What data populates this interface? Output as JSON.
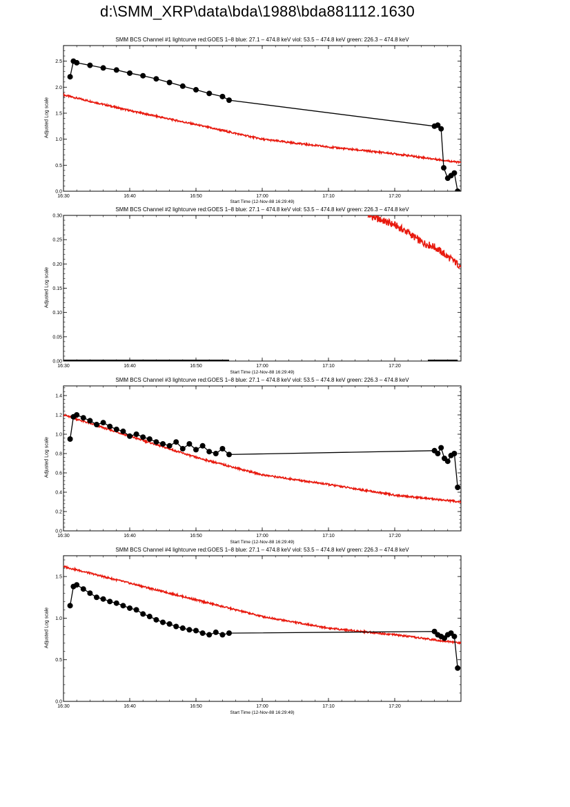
{
  "page": {
    "title": "d:\\SMM_XRP\\data\\bda\\1988\\bda881112.1630"
  },
  "colors": {
    "goes": "#e8190e",
    "bcs": "#000000"
  },
  "chart_data": [
    {
      "type": "scatter",
      "title": "SMM BCS Channel #1 lightcurve  red:GOES 1–8  blue: 27.1 – 474.8 keV  viol: 53.5 – 474.8 keV  green: 226.3 – 474.8 keV",
      "xlabel": "Start Time (12-Nov-88 16:29:49)",
      "ylabel": "Adjusted Log scale",
      "xlim": [
        "16:30",
        "17:30"
      ],
      "xticks": [
        "16:30",
        "16:40",
        "16:50",
        "17:00",
        "17:10",
        "17:20"
      ],
      "ylim": [
        0.0,
        2.8
      ],
      "yticks": [
        "0.0",
        "0.5",
        "1.0",
        "1.5",
        "2.0",
        "2.5"
      ],
      "series": [
        {
          "color": "red",
          "style": "line",
          "x": [
            "16:30",
            "16:40",
            "16:50",
            "17:00",
            "17:10",
            "17:20",
            "17:30"
          ],
          "y": [
            1.85,
            1.55,
            1.28,
            1.0,
            0.85,
            0.72,
            0.55
          ]
        },
        {
          "color": "black",
          "style": "line+points",
          "x": [
            "16:31",
            "16:31.5",
            "16:32",
            "16:34",
            "16:36",
            "16:38",
            "16:40",
            "16:42",
            "16:44",
            "16:46",
            "16:48",
            "16:50",
            "16:52",
            "16:54",
            "16:55",
            "17:26",
            "17:26.5",
            "17:27",
            "17:27.4",
            "17:28",
            "17:28.5",
            "17:29",
            "17:29.5"
          ],
          "y": [
            2.2,
            2.5,
            2.47,
            2.42,
            2.37,
            2.33,
            2.27,
            2.22,
            2.16,
            2.09,
            2.02,
            1.95,
            1.88,
            1.82,
            1.75,
            1.25,
            1.27,
            1.2,
            0.45,
            0.25,
            0.3,
            0.35,
            0.0
          ]
        }
      ]
    },
    {
      "type": "line",
      "title": "SMM BCS Channel #2 lightcurve  red:GOES 1–8  blue: 27.1 – 474.8 keV  viol: 53.5 – 474.8 keV  green: 226.3 – 474.8 keV",
      "xlabel": "Start Time (12-Nov-88 16:29:49)",
      "ylabel": "Adjusted Log scale",
      "xlim": [
        "16:30",
        "17:30"
      ],
      "xticks": [
        "16:30",
        "16:40",
        "16:50",
        "17:00",
        "17:10",
        "17:20"
      ],
      "ylim": [
        0.0,
        0.3
      ],
      "yticks": [
        "0.00",
        "0.05",
        "0.10",
        "0.15",
        "0.20",
        "0.25",
        "0.30"
      ],
      "series": [
        {
          "color": "red",
          "style": "line",
          "x": [
            "17:16",
            "17:18",
            "17:20",
            "17:22",
            "17:24",
            "17:26",
            "17:28",
            "17:30"
          ],
          "y": [
            0.3,
            0.29,
            0.28,
            0.265,
            0.245,
            0.235,
            0.215,
            0.195
          ]
        },
        {
          "color": "black",
          "style": "line",
          "x": [
            "16:30",
            "16:55"
          ],
          "y": [
            0.0,
            0.0
          ]
        },
        {
          "color": "black",
          "style": "line",
          "x": [
            "17:25",
            "17:29.5"
          ],
          "y": [
            0.0,
            0.0
          ]
        }
      ]
    },
    {
      "type": "scatter",
      "title": "SMM BCS Channel #3 lightcurve  red:GOES 1–8  blue: 27.1 – 474.8 keV  viol: 53.5 – 474.8 keV  green: 226.3 – 474.8 keV",
      "xlabel": "Start Time (12-Nov-88 16:29:49)",
      "ylabel": "Adjusted Log scale",
      "xlim": [
        "16:30",
        "17:30"
      ],
      "xticks": [
        "16:30",
        "16:40",
        "16:50",
        "17:00",
        "17:10",
        "17:20"
      ],
      "ylim": [
        0.0,
        1.5
      ],
      "yticks": [
        "0.0",
        "0.2",
        "0.4",
        "0.6",
        "0.8",
        "1.0",
        "1.2",
        "1.4"
      ],
      "series": [
        {
          "color": "red",
          "style": "line",
          "x": [
            "16:30",
            "16:40",
            "16:50",
            "17:00",
            "17:10",
            "17:20",
            "17:30"
          ],
          "y": [
            1.2,
            0.98,
            0.76,
            0.58,
            0.48,
            0.37,
            0.3
          ]
        },
        {
          "color": "black",
          "style": "line+points",
          "x": [
            "16:31",
            "16:31.5",
            "16:32",
            "16:33",
            "16:34",
            "16:35",
            "16:36",
            "16:37",
            "16:38",
            "16:39",
            "16:40",
            "16:41",
            "16:42",
            "16:43",
            "16:44",
            "16:45",
            "16:46",
            "16:47",
            "16:48",
            "16:49",
            "16:50",
            "16:51",
            "16:52",
            "16:53",
            "16:54",
            "16:55",
            "17:26",
            "17:26.5",
            "17:27",
            "17:27.5",
            "17:28",
            "17:28.5",
            "17:29",
            "17:29.5"
          ],
          "y": [
            0.95,
            1.18,
            1.2,
            1.17,
            1.14,
            1.1,
            1.12,
            1.08,
            1.05,
            1.03,
            0.98,
            1.0,
            0.97,
            0.95,
            0.92,
            0.9,
            0.88,
            0.92,
            0.85,
            0.9,
            0.84,
            0.88,
            0.82,
            0.8,
            0.85,
            0.79,
            0.83,
            0.8,
            0.86,
            0.75,
            0.72,
            0.78,
            0.8,
            0.45
          ]
        }
      ]
    },
    {
      "type": "scatter",
      "title": "SMM BCS Channel #4 lightcurve  red:GOES 1–8  blue: 27.1 – 474.8 keV  viol: 53.5 – 474.8 keV  green: 226.3 – 474.8 keV",
      "xlabel": "Start Time (12-Nov-88 16:29:49)",
      "ylabel": "Adjusted Log scale",
      "xlim": [
        "16:30",
        "17:30"
      ],
      "xticks": [
        "16:30",
        "16:40",
        "16:50",
        "17:00",
        "17:10",
        "17:20"
      ],
      "ylim": [
        0.0,
        1.75
      ],
      "yticks": [
        "0.0",
        "0.5",
        "1.0",
        "1.5"
      ],
      "series": [
        {
          "color": "red",
          "style": "line",
          "x": [
            "16:30",
            "16:40",
            "16:50",
            "17:00",
            "17:10",
            "17:20",
            "17:30"
          ],
          "y": [
            1.62,
            1.42,
            1.22,
            1.02,
            0.88,
            0.8,
            0.7
          ]
        },
        {
          "color": "black",
          "style": "line+points",
          "x": [
            "16:31",
            "16:31.5",
            "16:32",
            "16:33",
            "16:34",
            "16:35",
            "16:36",
            "16:37",
            "16:38",
            "16:39",
            "16:40",
            "16:41",
            "16:42",
            "16:43",
            "16:44",
            "16:45",
            "16:46",
            "16:47",
            "16:48",
            "16:49",
            "16:50",
            "16:51",
            "16:52",
            "16:53",
            "16:54",
            "16:55",
            "17:26",
            "17:26.5",
            "17:27",
            "17:27.5",
            "17:28",
            "17:28.5",
            "17:29",
            "17:29.5"
          ],
          "y": [
            1.15,
            1.38,
            1.4,
            1.35,
            1.3,
            1.25,
            1.23,
            1.2,
            1.18,
            1.15,
            1.12,
            1.1,
            1.05,
            1.02,
            0.98,
            0.95,
            0.93,
            0.9,
            0.88,
            0.86,
            0.85,
            0.82,
            0.8,
            0.83,
            0.8,
            0.82,
            0.84,
            0.8,
            0.78,
            0.76,
            0.8,
            0.82,
            0.78,
            0.4
          ]
        }
      ]
    }
  ]
}
